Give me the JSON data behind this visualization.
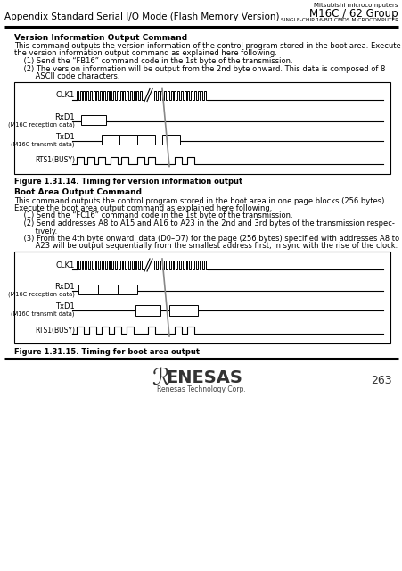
{
  "title_small": "Mitsubishi microcomputers",
  "title_large": "M16C / 62 Group",
  "title_sub": "SINGLE-CHIP 16-BIT CMOS MICROCOMPUTER",
  "header_left": "Appendix Standard Serial I/O Mode (Flash Memory Version)",
  "page_num": "263",
  "section1_title": "Version Information Output Command",
  "section1_lines": [
    "This command outputs the version information of the control program stored in the boot area. Execute",
    "the version information output command as explained here following.",
    "    (1) Send the “FB16” command code in the 1st byte of the transmission.",
    "    (2) The version information will be output from the 2nd byte onward. This data is composed of 8",
    "         ASCII code characters."
  ],
  "fig1_caption": "Figure 1.31.14. Timing for version information output",
  "section2_title": "Boot Area Output Command",
  "section2_lines": [
    "This command outputs the control program stored in the boot area in one page blocks (256 bytes).",
    "Execute the boot area output command as explained here following.",
    "    (1) Send the “FC16” command code in the 1st byte of the transmission.",
    "    (2) Send addresses A8 to A15 and A16 to A23 in the 2nd and 3rd bytes of the transmission respec-",
    "         tively.",
    "    (3) From the 4th byte onward, data (D0–D7) for the page (256 bytes) specified with addresses A8 to",
    "         A23 will be output sequentially from the smallest address first, in sync with the rise of the clock."
  ],
  "fig2_caption": "Figure 1.31.15. Timing for boot area output",
  "renesas_text": "Renesas Technology Corp.",
  "bg_color": "#ffffff"
}
